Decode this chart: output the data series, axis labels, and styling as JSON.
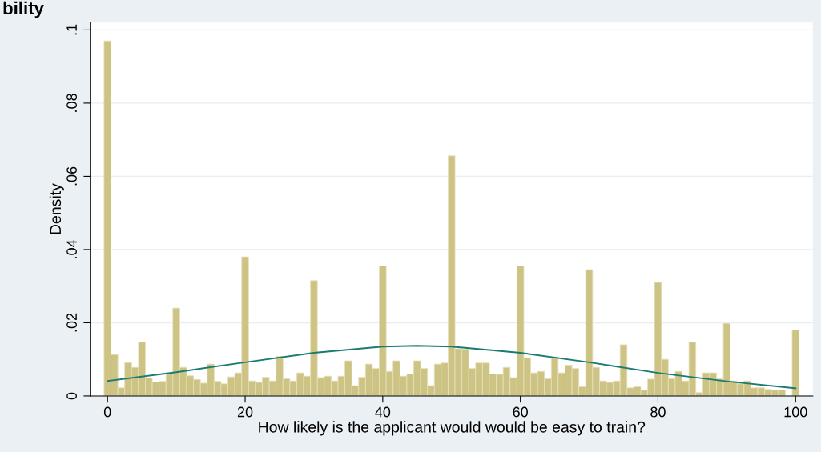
{
  "chart_data": {
    "type": "histogram",
    "title": "bility",
    "xlabel": "How likely is the applicant would would be easy to train?",
    "ylabel": "Density",
    "bins": [
      -0.5,
      0.5,
      1.5,
      2.5,
      3.5,
      4.5,
      5.5,
      6.5,
      7.5,
      8.5,
      9.5,
      10.5,
      11.5,
      12.5,
      13.5,
      14.5,
      15.5,
      16.5,
      17.5,
      18.5,
      19.5,
      20.5,
      21.5,
      22.5,
      23.5,
      24.5,
      25.5,
      26.5,
      27.5,
      28.5,
      29.5,
      30.5,
      31.5,
      32.5,
      33.5,
      34.5,
      35.5,
      36.5,
      37.5,
      38.5,
      39.5,
      40.5,
      41.5,
      42.5,
      43.5,
      44.5,
      45.5,
      46.5,
      47.5,
      48.5,
      49.5,
      50.5,
      51.5,
      52.5,
      53.5,
      54.5,
      55.5,
      56.5,
      57.5,
      58.5,
      59.5,
      60.5,
      61.5,
      62.5,
      63.5,
      64.5,
      65.5,
      66.5,
      67.5,
      68.5,
      69.5,
      70.5,
      71.5,
      72.5,
      73.5,
      74.5,
      75.5,
      76.5,
      77.5,
      78.5,
      79.5,
      80.5,
      81.5,
      82.5,
      83.5,
      84.5,
      85.5,
      86.5,
      87.5,
      88.5,
      89.5,
      90.5,
      91.5,
      92.5,
      93.5,
      94.5,
      95.5,
      96.5,
      97.5,
      98.5,
      99.5,
      100.5
    ],
    "series": [
      {
        "color": "#cdc385",
        "values": [
          0.097,
          0.0113,
          0.0022,
          0.0091,
          0.0078,
          0.0147,
          0.0049,
          0.0038,
          0.004,
          0.006,
          0.024,
          0.0078,
          0.0055,
          0.0045,
          0.0035,
          0.0087,
          0.004,
          0.0033,
          0.0052,
          0.0063,
          0.038,
          0.0041,
          0.0037,
          0.0051,
          0.0041,
          0.0108,
          0.0047,
          0.0041,
          0.0063,
          0.0054,
          0.0315,
          0.005,
          0.0054,
          0.0041,
          0.0054,
          0.0096,
          0.0028,
          0.0051,
          0.0087,
          0.0075,
          0.0355,
          0.0067,
          0.0096,
          0.0054,
          0.006,
          0.0096,
          0.0075,
          0.0028,
          0.0087,
          0.009,
          0.0656,
          0.0129,
          0.0128,
          0.0075,
          0.009,
          0.009,
          0.006,
          0.0059,
          0.0078,
          0.005,
          0.0355,
          0.0104,
          0.0063,
          0.0067,
          0.0047,
          0.0104,
          0.0063,
          0.0084,
          0.0075,
          0.0025,
          0.0345,
          0.0078,
          0.0041,
          0.0037,
          0.0041,
          0.014,
          0.0022,
          0.0025,
          0.0016,
          0.0046,
          0.031,
          0.01,
          0.0047,
          0.0067,
          0.0041,
          0.0147,
          0.0009,
          0.0063,
          0.0063,
          0.0047,
          0.0198,
          0.0041,
          0.0033,
          0.0041,
          0.0022,
          0.0022,
          0.0018,
          0.0016,
          0.0016,
          null,
          0.018
        ]
      },
      {
        "type": "line",
        "color": "#1b7b72",
        "x": [
          0,
          10,
          20,
          30,
          40,
          45,
          50,
          60,
          70,
          80,
          90,
          100
        ],
        "values": [
          0.0041,
          0.0065,
          0.0092,
          0.0118,
          0.0135,
          0.0137,
          0.0135,
          0.0118,
          0.0092,
          0.0063,
          0.004,
          0.0021
        ]
      }
    ],
    "xlim": [
      -2.5,
      102.5
    ],
    "xticks": [
      0,
      20,
      40,
      60,
      80,
      100
    ],
    "ylim": [
      0,
      0.102
    ],
    "yticks": [
      0,
      {
        "value": 0.02,
        "label": ".02"
      },
      {
        "value": 0.04,
        "label": ".04"
      },
      {
        "value": 0.06,
        "label": ".06"
      },
      {
        "value": 0.08,
        "label": ".08"
      },
      {
        "value": 0.1,
        "label": ".1"
      }
    ],
    "grid": "y"
  }
}
